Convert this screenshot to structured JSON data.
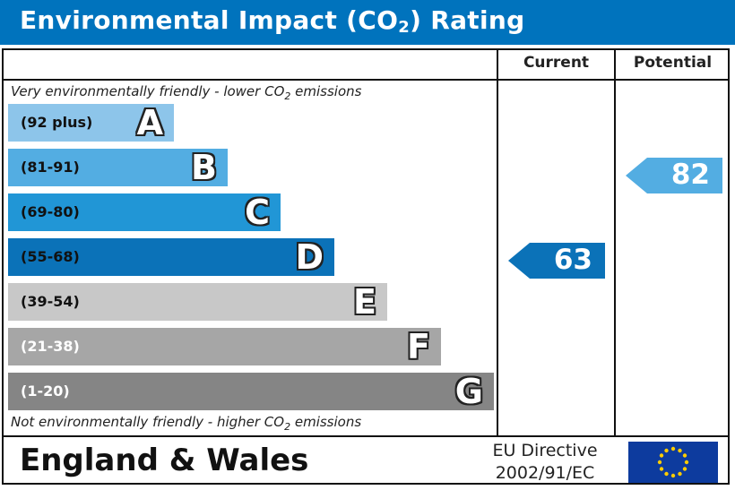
{
  "header": {
    "title_before": "Environmental Impact (CO",
    "title_sub": "2",
    "title_after": ") Rating"
  },
  "columns": {
    "current": "Current",
    "potential": "Potential"
  },
  "notes": {
    "top_before": "Very environmentally friendly - lower CO",
    "top_sub": "2",
    "top_after": " emissions",
    "bottom_before": "Not environmentally friendly - higher CO",
    "bottom_sub": "2",
    "bottom_after": " emissions"
  },
  "footer": {
    "country": "England & Wales",
    "directive_line1": "EU Directive",
    "directive_line2": "2002/91/EC"
  },
  "chart_data": {
    "type": "bar",
    "bands": [
      {
        "range": "(92 plus)",
        "letter": "A",
        "min": 92,
        "max": 100,
        "color": "#8dc5ea",
        "text_color": "#111111"
      },
      {
        "range": "(81-91)",
        "letter": "B",
        "min": 81,
        "max": 91,
        "color": "#53ade2",
        "text_color": "#111111"
      },
      {
        "range": "(69-80)",
        "letter": "C",
        "min": 69,
        "max": 80,
        "color": "#2196d6",
        "text_color": "#111111"
      },
      {
        "range": "(55-68)",
        "letter": "D",
        "min": 55,
        "max": 68,
        "color": "#0b72b8",
        "text_color": "#111111"
      },
      {
        "range": "(39-54)",
        "letter": "E",
        "min": 39,
        "max": 54,
        "color": "#c8c8c8",
        "text_color": "#111111"
      },
      {
        "range": "(21-38)",
        "letter": "F",
        "min": 21,
        "max": 38,
        "color": "#a6a6a6",
        "text_color": "#ffffff"
      },
      {
        "range": "(1-20)",
        "letter": "G",
        "min": 1,
        "max": 20,
        "color": "#858585",
        "text_color": "#ffffff"
      }
    ],
    "current": {
      "value": 63,
      "band": "D",
      "color": "#0b72b8"
    },
    "potential": {
      "value": 82,
      "band": "B",
      "color": "#53ade2"
    }
  }
}
